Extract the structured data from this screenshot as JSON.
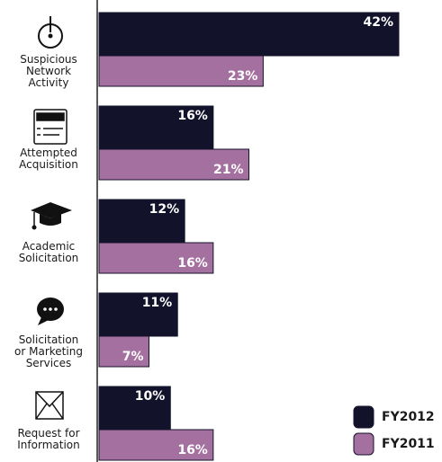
{
  "chart_data": {
    "type": "bar",
    "orientation": "horizontal",
    "categories": [
      "Suspicious\nNetwork\nActivity",
      "Attempted\nAcquisition",
      "Academic\nSolicitation",
      "Solicitation\nor Marketing\nServices",
      "Request for\nInformation"
    ],
    "series": [
      {
        "name": "FY2012",
        "color": "#13122b",
        "values": [
          42,
          16,
          12,
          11,
          10
        ],
        "value_labels": [
          "42%",
          "16%",
          "12%",
          "11%",
          "10%"
        ]
      },
      {
        "name": "FY2011",
        "color": "#a4709f",
        "values": [
          23,
          21,
          16,
          7,
          16
        ],
        "value_labels": [
          "23%",
          "21%",
          "16%",
          "7%",
          "16%"
        ]
      }
    ],
    "legend": "bottom-right"
  }
}
